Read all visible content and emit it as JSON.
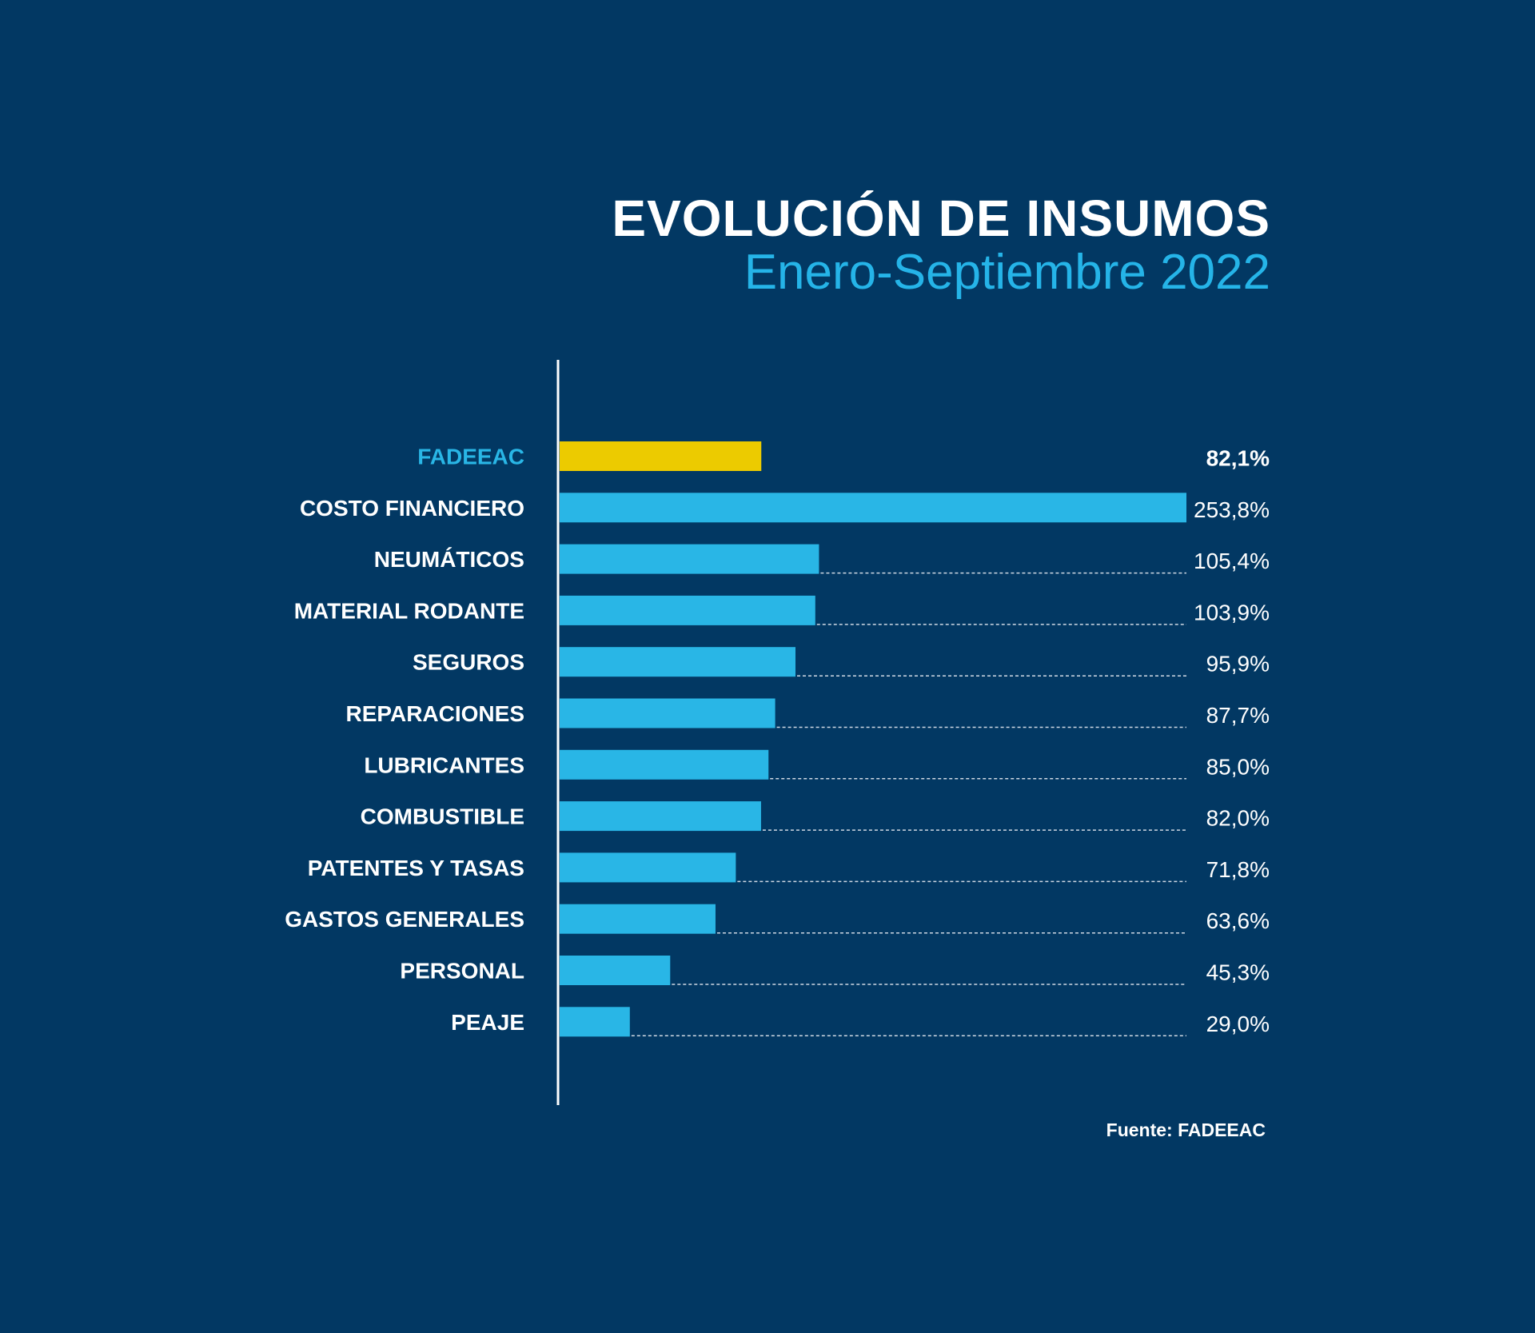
{
  "colors": {
    "background": "#023863",
    "bar": "#29b6e6",
    "highlight_bar": "#eccb00",
    "highlight_label": "#29b6e6",
    "text": "#ffffff"
  },
  "chart_data": {
    "type": "bar",
    "orientation": "horizontal",
    "title": "EVOLUCIÓN DE INSUMOS",
    "subtitle": "Enero-Septiembre 2022",
    "source": "Fuente: FADEEAC",
    "categories": [
      "FADEEAC",
      "COSTO FINANCIERO",
      "NEUMÁTICOS",
      "MATERIAL RODANTE",
      "SEGUROS",
      "REPARACIONES",
      "LUBRICANTES",
      "COMBUSTIBLE",
      "PATENTES Y TASAS",
      "GASTOS GENERALES",
      "PERSONAL",
      "PEAJE"
    ],
    "values": [
      82.1,
      253.8,
      105.4,
      103.9,
      95.9,
      87.7,
      85.0,
      82.0,
      71.8,
      63.6,
      45.3,
      29.0
    ],
    "value_labels": [
      "82,1%",
      "253,8%",
      "105,4%",
      "103,9%",
      "95,9%",
      "87,7%",
      "85,0%",
      "82,0%",
      "71,8%",
      "63,6%",
      "45,3%",
      "29,0%"
    ],
    "highlight_index": 0,
    "xlim": [
      0,
      253.8
    ],
    "grid": false,
    "legend": false
  }
}
